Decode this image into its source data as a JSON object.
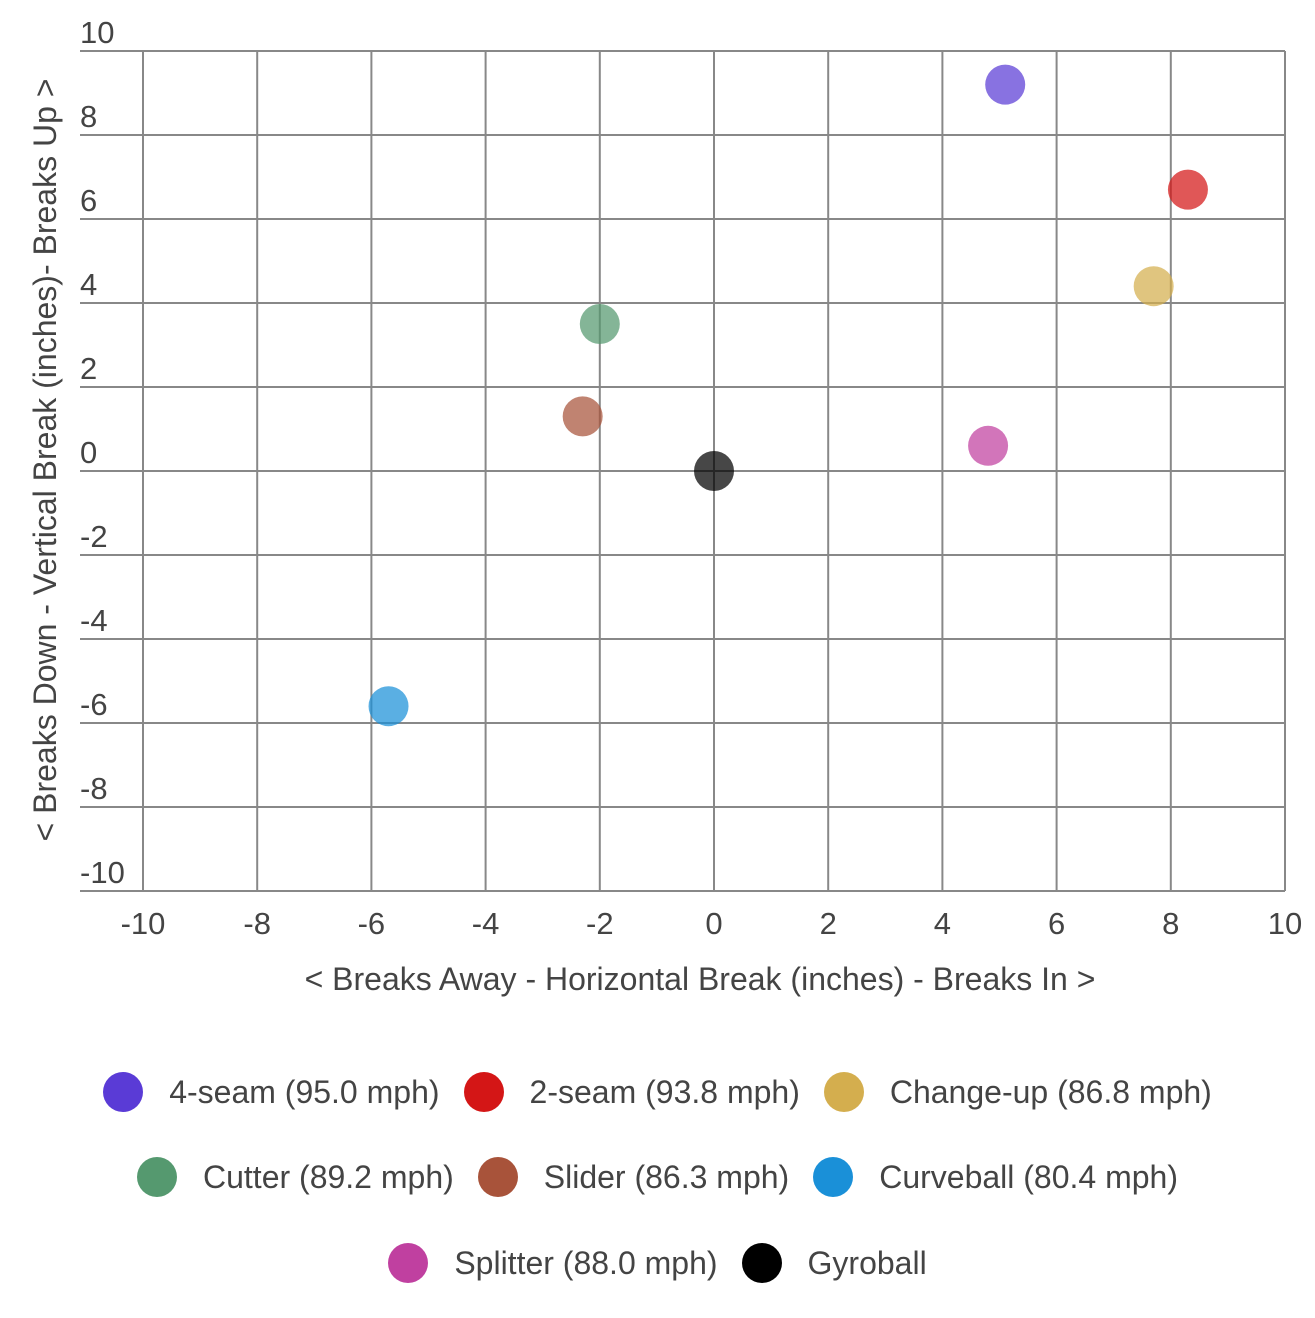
{
  "chart_data": {
    "type": "scatter",
    "xlabel": "< Breaks Away - Horizontal Break (inches) - Breaks In >",
    "ylabel": "< Breaks Down - Vertical Break (inches)- Breaks Up >",
    "xlim": [
      -10,
      10
    ],
    "ylim": [
      -10,
      10
    ],
    "xticks": [
      -10,
      -8,
      -6,
      -4,
      -2,
      0,
      2,
      4,
      6,
      8,
      10
    ],
    "yticks": [
      10,
      8,
      6,
      4,
      2,
      0,
      -2,
      -4,
      -6,
      -8,
      -10
    ],
    "grid": true,
    "legend_position": "bottom",
    "series": [
      {
        "name": "4-seam (95.0 mph)",
        "color": "#5a3bd6",
        "x": 5.1,
        "y": 9.2
      },
      {
        "name": "2-seam (93.8 mph)",
        "color": "#d41616",
        "x": 8.3,
        "y": 6.7
      },
      {
        "name": "Change-up (86.8 mph)",
        "color": "#d4ae4e",
        "x": 7.7,
        "y": 4.4
      },
      {
        "name": "Cutter (89.2 mph)",
        "color": "#55996f",
        "x": -2.0,
        "y": 3.5
      },
      {
        "name": "Slider (86.3 mph)",
        "color": "#a8533a",
        "x": -2.3,
        "y": 1.3
      },
      {
        "name": "Curveball (80.4 mph)",
        "color": "#1a90d8",
        "x": -5.7,
        "y": -5.6
      },
      {
        "name": "Splitter (88.0 mph)",
        "color": "#c040a0",
        "x": 4.8,
        "y": 0.6
      },
      {
        "name": "Gyroball",
        "color": "#000000",
        "x": 0.0,
        "y": 0.0
      }
    ]
  }
}
